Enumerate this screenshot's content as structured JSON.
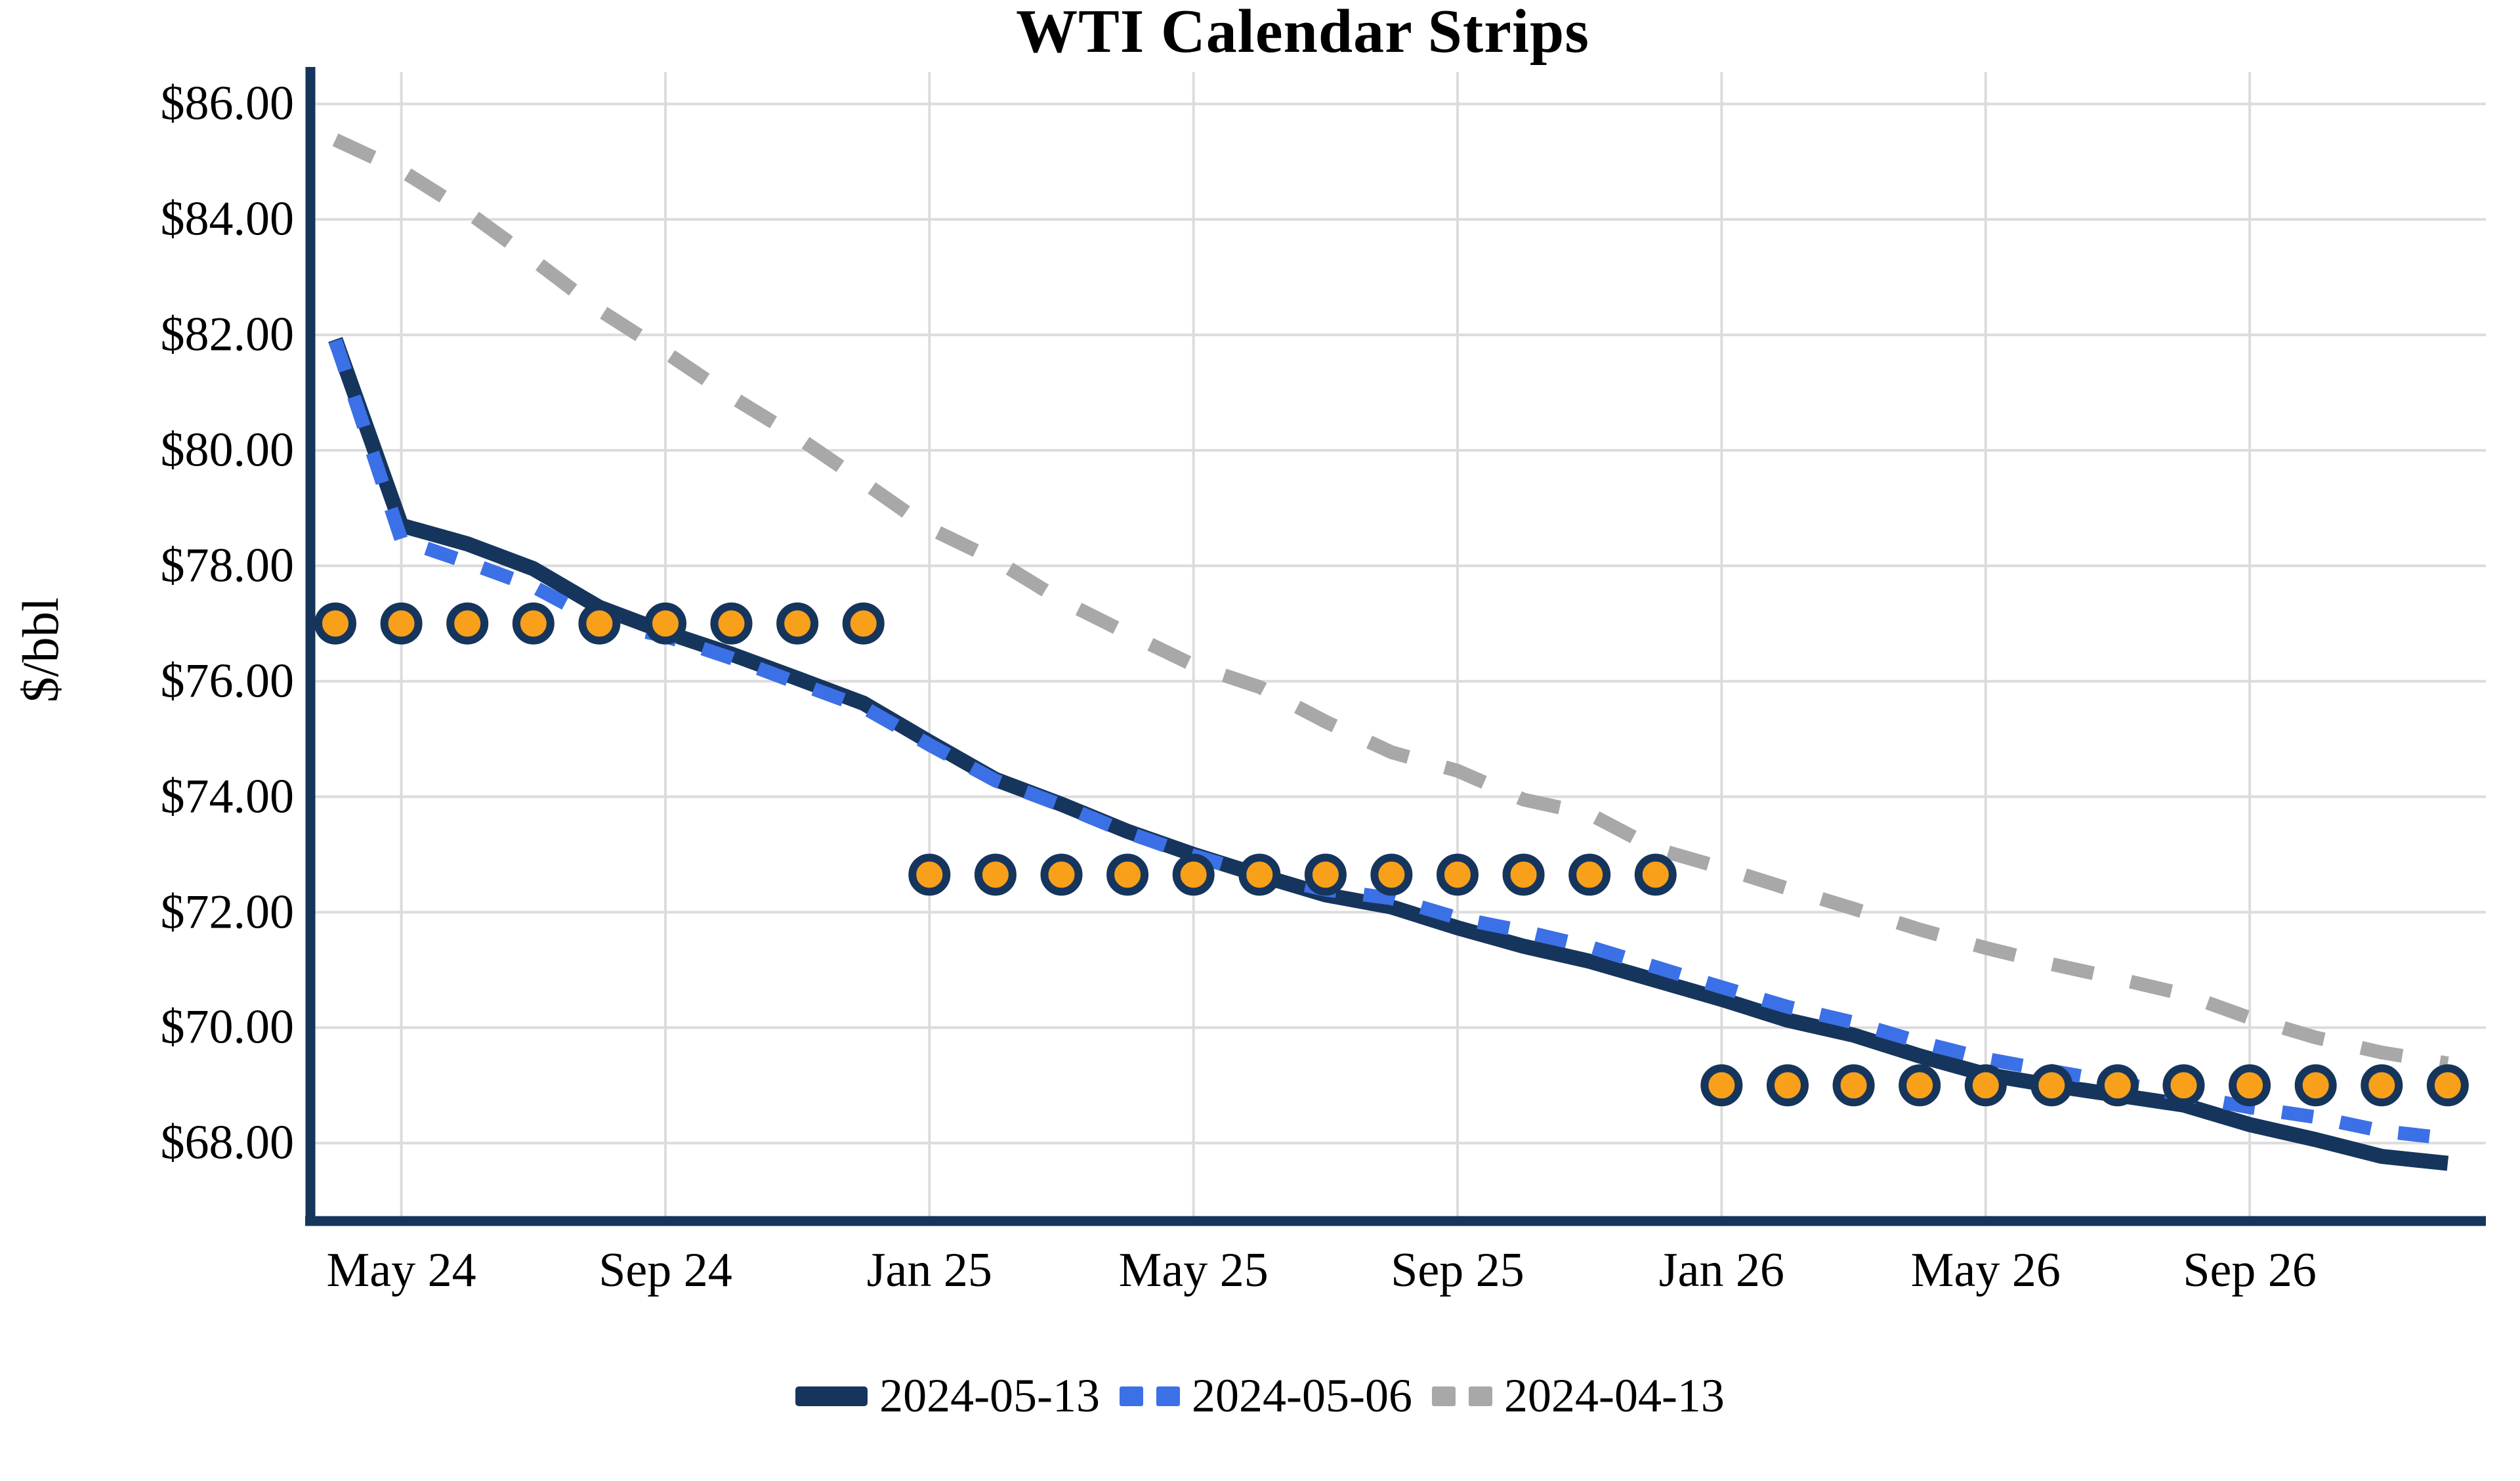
{
  "title": "WTI Calendar Strips",
  "y_axis": {
    "label": "$/bbl",
    "ticks": [
      "$86.00",
      "$84.00",
      "$82.00",
      "$80.00",
      "$78.00",
      "$76.00",
      "$74.00",
      "$72.00",
      "$70.00",
      "$68.00"
    ],
    "tick_values": [
      86,
      84,
      82,
      80,
      78,
      76,
      74,
      72,
      70,
      68
    ]
  },
  "x_axis": {
    "tick_labels": [
      "May 24",
      "Sep 24",
      "Jan 25",
      "May 25",
      "Sep 25",
      "Jan 26",
      "May 26",
      "Sep 26"
    ],
    "tick_month_indices": [
      1,
      5,
      9,
      13,
      17,
      21,
      25,
      29
    ]
  },
  "legend": {
    "items": [
      {
        "label": "2024-05-13",
        "swatch": "navy-solid"
      },
      {
        "label": "2024-05-06",
        "swatch": "blue-dashed"
      },
      {
        "label": "2024-04-13",
        "swatch": "gray-dashed"
      }
    ]
  },
  "colors": {
    "navy": "#16355C",
    "blue": "#3C70E6",
    "gray": "#A8A8A8",
    "orange": "#F9A01B",
    "gridline": "#DCDCDC"
  },
  "chart_data": {
    "type": "line",
    "title": "WTI Calendar Strips",
    "xlabel": "",
    "ylabel": "$/bbl",
    "ylim": [
      66.65,
      86.55
    ],
    "grid": true,
    "legend_position": "bottom",
    "months": [
      "Apr 24",
      "May 24",
      "Jun 24",
      "Jul 24",
      "Aug 24",
      "Sep 24",
      "Oct 24",
      "Nov 24",
      "Dec 24",
      "Jan 25",
      "Feb 25",
      "Mar 25",
      "Apr 25",
      "May 25",
      "Jun 25",
      "Jul 25",
      "Aug 25",
      "Sep 25",
      "Oct 25",
      "Nov 25",
      "Dec 25",
      "Jan 26",
      "Feb 26",
      "Mar 26",
      "Apr 26",
      "May 26",
      "Jun 26",
      "Jul 26",
      "Aug 26",
      "Sep 26",
      "Oct 26",
      "Nov 26",
      "Dec 26"
    ],
    "series": [
      {
        "name": "2024-05-13",
        "style": "solid",
        "color": "#16355C",
        "width": 23,
        "dash": null,
        "values": [
          81.92,
          78.7,
          78.38,
          77.95,
          77.28,
          76.85,
          76.47,
          76.05,
          75.62,
          74.95,
          74.3,
          73.87,
          73.4,
          73.0,
          72.64,
          72.3,
          72.09,
          71.73,
          71.41,
          71.15,
          70.82,
          70.49,
          70.13,
          69.87,
          69.51,
          69.19,
          69.0,
          68.83,
          68.66,
          68.32,
          68.06,
          67.77,
          67.65
        ]
      },
      {
        "name": "2024-05-06",
        "style": "dashed",
        "color": "#3C70E6",
        "width": 21,
        "dash": [
          48,
          42
        ],
        "values": [
          81.9,
          78.45,
          78.06,
          77.64,
          77.03,
          76.78,
          76.4,
          75.97,
          75.55,
          74.9,
          74.28,
          73.85,
          73.38,
          72.98,
          72.64,
          72.39,
          72.24,
          71.9,
          71.67,
          71.4,
          71.05,
          70.7,
          70.36,
          70.09,
          69.75,
          69.46,
          69.25,
          69.05,
          68.83,
          68.62,
          68.45,
          68.21,
          68.08
        ]
      },
      {
        "name": "2024-04-13",
        "style": "dashed",
        "color": "#A8A8A8",
        "width": 21,
        "dash": [
          64,
          58
        ],
        "values": [
          85.38,
          84.85,
          84.13,
          83.3,
          82.43,
          81.7,
          80.93,
          80.23,
          79.45,
          78.65,
          78.1,
          77.4,
          76.83,
          76.28,
          75.9,
          75.3,
          74.77,
          74.45,
          73.95,
          73.7,
          73.1,
          72.77,
          72.41,
          72.06,
          71.7,
          71.38,
          71.1,
          70.85,
          70.58,
          70.17,
          69.83,
          69.57,
          69.38
        ]
      }
    ],
    "markers": [
      {
        "name": "cal-2024-strip",
        "value": 77.0,
        "start_month": "Apr 24",
        "end_month": "Dec 24",
        "fill": "#F9A01B",
        "edge": "#16355C"
      },
      {
        "name": "cal-2025-strip",
        "value": 72.65,
        "start_month": "Jan 25",
        "end_month": "Dec 25",
        "fill": "#F9A01B",
        "edge": "#16355C"
      },
      {
        "name": "cal-2026-strip",
        "value": 69.0,
        "start_month": "Jan 26",
        "end_month": "Dec 26",
        "fill": "#F9A01B",
        "edge": "#16355C"
      }
    ]
  }
}
